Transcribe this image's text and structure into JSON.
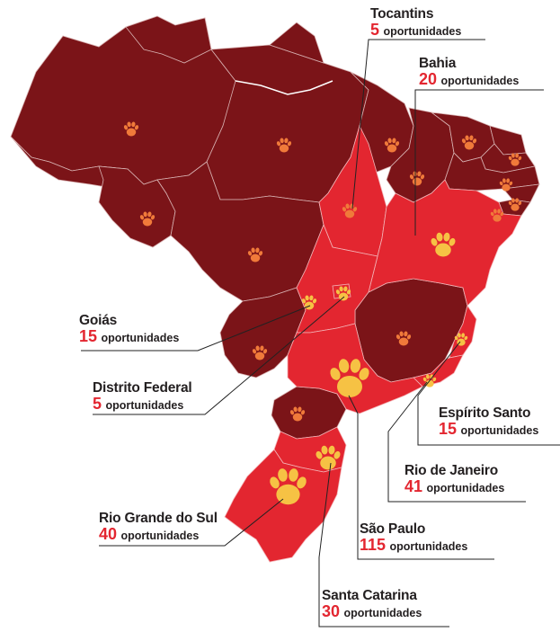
{
  "colors": {
    "dark_state": "#7b1418",
    "highlight_state": "#e32630",
    "paw_small": "#f07a3a",
    "paw_large": "#f6c244",
    "number_text": "#e32630"
  },
  "highlighted_states": [
    {
      "id": "tocantins",
      "name": "Tocantins",
      "count": "5",
      "unit": "oportunidades"
    },
    {
      "id": "bahia",
      "name": "Bahia",
      "count": "20",
      "unit": "oportunidades"
    },
    {
      "id": "goias",
      "name": "Goiás",
      "count": "15",
      "unit": "oportunidades"
    },
    {
      "id": "distrito-federal",
      "name": "Distrito Federal",
      "count": "5",
      "unit": "oportunidades"
    },
    {
      "id": "espirito-santo",
      "name": "Espírito Santo",
      "count": "15",
      "unit": "oportunidades"
    },
    {
      "id": "rio-de-janeiro",
      "name": "Rio de Janeiro",
      "count": "41",
      "unit": "oportunidades"
    },
    {
      "id": "rio-grande-do-sul",
      "name": "Rio Grande do Sul",
      "count": "40",
      "unit": "oportunidades"
    },
    {
      "id": "sao-paulo",
      "name": "São Paulo",
      "count": "115",
      "unit": "oportunidades"
    },
    {
      "id": "santa-catarina",
      "name": "Santa Catarina",
      "count": "30",
      "unit": "oportunidades"
    }
  ],
  "icon": "paw-print-icon"
}
